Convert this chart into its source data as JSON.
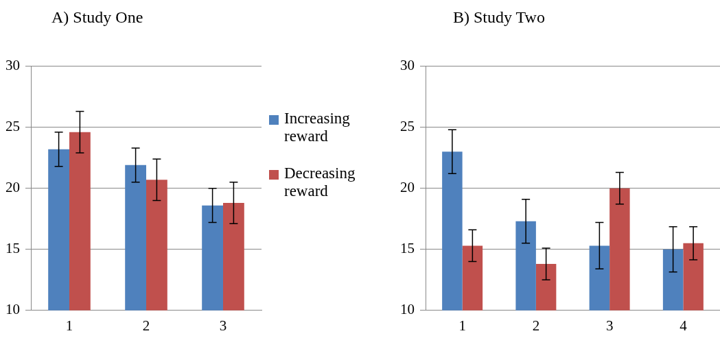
{
  "chart_data": [
    {
      "type": "bar",
      "title": "A) Study One",
      "categories": [
        "1",
        "2",
        "3"
      ],
      "series": [
        {
          "name": "Increasing reward",
          "color": "#4f81bd",
          "values": [
            23.2,
            21.9,
            18.6
          ],
          "errors": [
            1.4,
            1.4,
            1.4
          ]
        },
        {
          "name": "Decreasing reward",
          "color": "#c0504d",
          "values": [
            24.6,
            20.7,
            18.8
          ],
          "errors": [
            1.7,
            1.7,
            1.7
          ]
        }
      ],
      "ylim": [
        10,
        30
      ],
      "yticks": [
        10,
        15,
        20,
        25,
        30
      ],
      "grid": "y",
      "legend": "right"
    },
    {
      "type": "bar",
      "title": "B) Study Two",
      "categories": [
        "1",
        "2",
        "3",
        "4"
      ],
      "series": [
        {
          "color": "#4f81bd",
          "values": [
            23.0,
            17.3,
            15.3,
            15.0
          ],
          "errors": [
            1.8,
            1.8,
            1.9,
            1.85
          ]
        },
        {
          "color": "#c0504d",
          "values": [
            15.3,
            13.8,
            20.0,
            15.5
          ],
          "errors": [
            1.3,
            1.3,
            1.3,
            1.35
          ]
        }
      ],
      "ylim": [
        10,
        30
      ],
      "yticks": [
        10,
        15,
        20,
        25,
        30
      ],
      "grid": "y"
    }
  ]
}
